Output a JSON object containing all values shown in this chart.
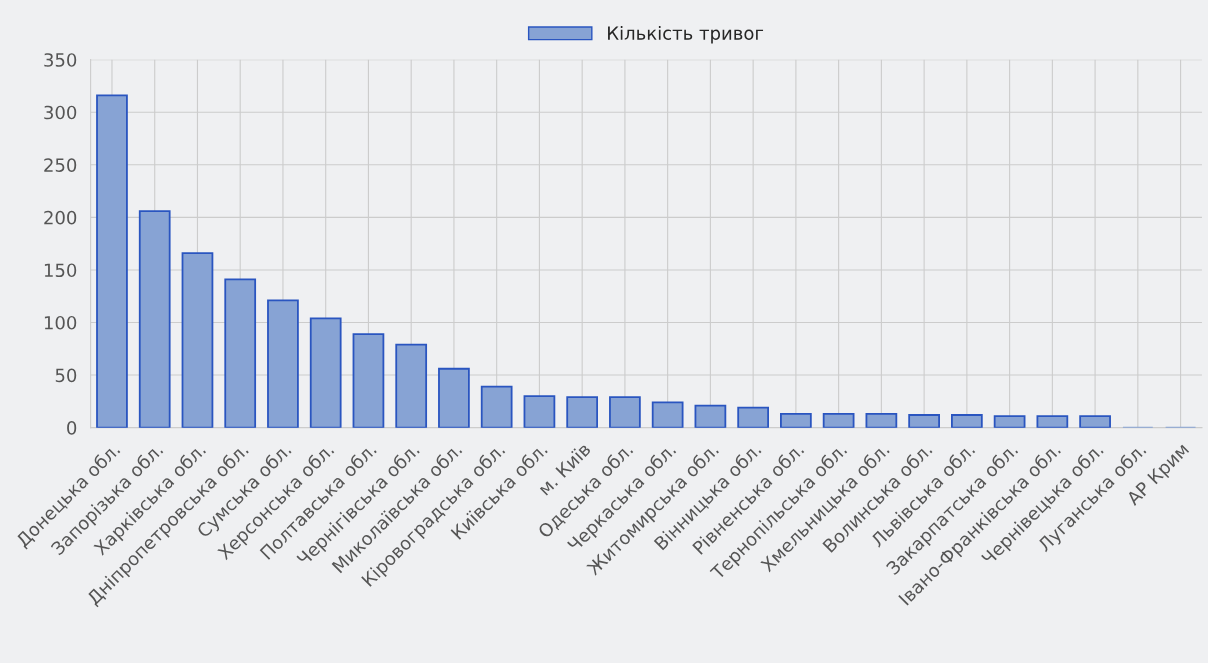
{
  "chart_data": {
    "type": "bar",
    "categories": [
      "Донецька обл.",
      "Запорізька обл.",
      "Харківська обл.",
      "Дніпропетровська обл.",
      "Сумська обл.",
      "Херсонська обл.",
      "Полтавська обл.",
      "Чернігівська обл.",
      "Миколаївська обл.",
      "Кіровоградська обл.",
      "Київська обл.",
      "м. Київ",
      "Одеська обл.",
      "Черкаська обл.",
      "Житомирська обл.",
      "Вінницька обл.",
      "Рівненська обл.",
      "Тернопільська обл.",
      "Хмельницька обл.",
      "Волинська обл.",
      "Львівська обл.",
      "Закарпатська обл.",
      "Івано-Франківська обл.",
      "Чернівецька обл.",
      "Луганська обл.",
      "АР Крим"
    ],
    "series": [
      {
        "name": "Кількість тривог",
        "color": "#87a3d4",
        "values": [
          316,
          206,
          166,
          141,
          121,
          104,
          89,
          79,
          56,
          39,
          30,
          29,
          29,
          24,
          21,
          19,
          13,
          13,
          13,
          12,
          12,
          11,
          11,
          11,
          0,
          0
        ]
      }
    ],
    "ylim": [
      0,
      350
    ],
    "yticks": [
      0,
      50,
      100,
      150,
      200,
      250,
      300,
      350
    ],
    "grid": true,
    "legend": "top"
  }
}
